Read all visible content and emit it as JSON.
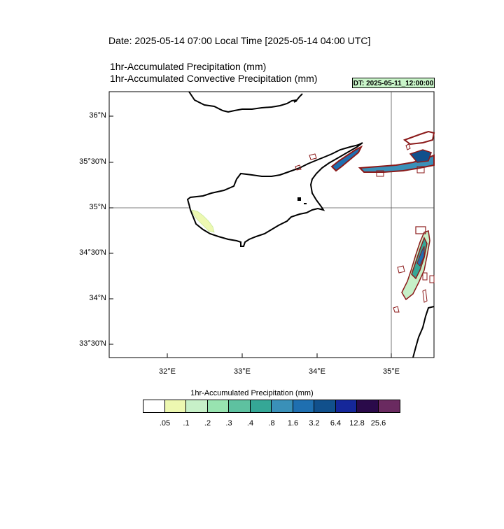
{
  "header": {
    "date_line": "Date: 2025-05-14  07:00 Local Time [2025-05-14  04:00 UTC]",
    "title_line1": "1hr-Accumulated Precipitation   (mm)",
    "title_line2": "1hr-Accumulated Convective Precipitation   (mm)",
    "dt_badge": "DT: 2025-05-11_12:00:00"
  },
  "map": {
    "lat_labels": [
      "36°N",
      "35°30'N",
      "35°N",
      "34°30'N",
      "34°N",
      "33°30'N"
    ],
    "lon_labels": [
      "32°E",
      "33°E",
      "34°E",
      "35°E"
    ],
    "extent": {
      "lon_min": 31.3,
      "lon_max": 35.55,
      "lat_min": 33.35,
      "lat_max": 36.27
    },
    "gridline_lon": 35.0,
    "gridline_lat": 35.0
  },
  "colorbar": {
    "title": "1hr-Accumulated Precipitation  (mm)",
    "ticks": [
      ".05",
      ".1",
      ".2",
      ".3",
      ".4",
      ".8",
      "1.6",
      "3.2",
      "6.4",
      "12.8",
      "25.6"
    ],
    "colors": [
      "#ffffff",
      "#edf8b1",
      "#c7f0c8",
      "#98e3b0",
      "#5ec1a0",
      "#35a796",
      "#3a90b8",
      "#1f6fb0",
      "#11508c",
      "#15279a",
      "#2a0a4a",
      "#6a2a60"
    ]
  },
  "legend_colors": {
    "convective_contour": "#8b1a1a",
    "coastline": "#000000"
  }
}
